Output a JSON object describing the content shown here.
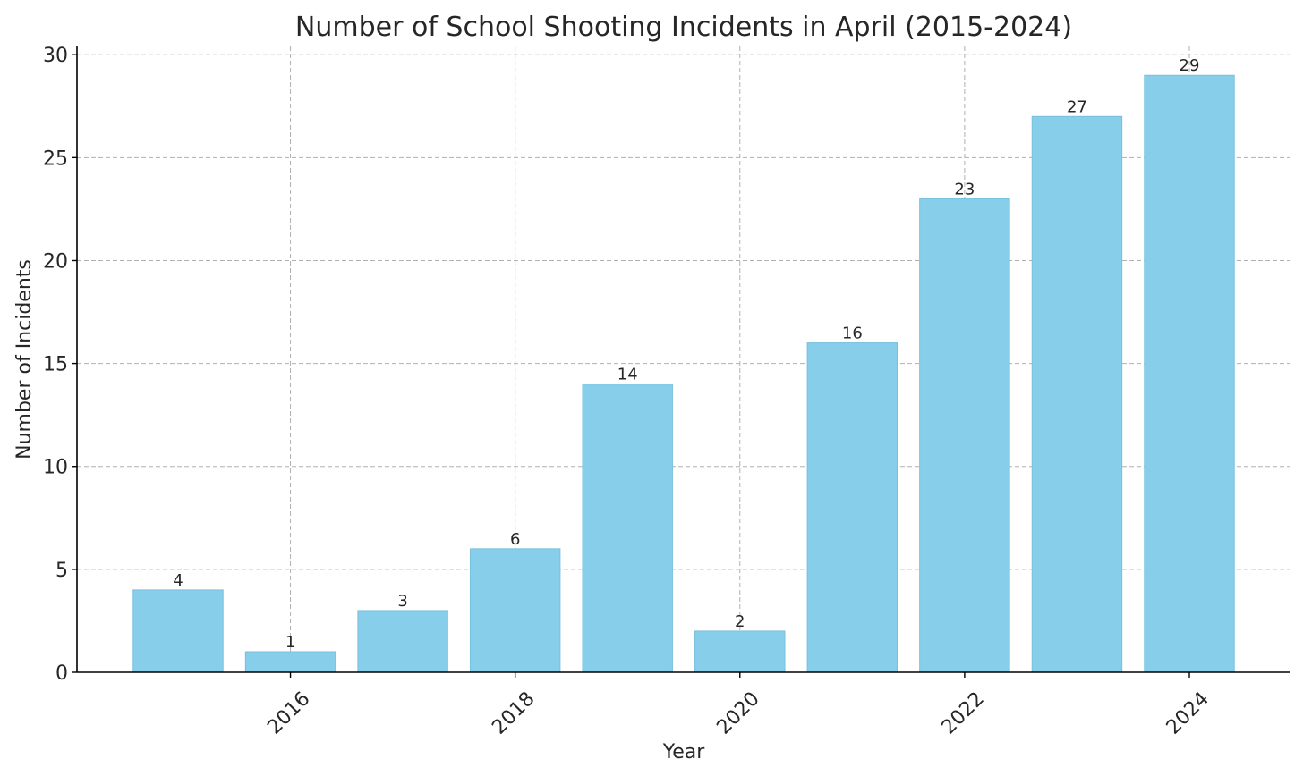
{
  "chart_data": {
    "type": "bar",
    "title": "Number of School Shooting Incidents in April (2015-2024)",
    "xlabel": "Year",
    "ylabel": "Number of Incidents",
    "x": [
      2015,
      2016,
      2017,
      2018,
      2019,
      2020,
      2021,
      2022,
      2023,
      2024
    ],
    "values": [
      4,
      1,
      3,
      6,
      14,
      2,
      16,
      23,
      27,
      29
    ],
    "data_labels": [
      "4",
      "1",
      "3",
      "6",
      "14",
      "2",
      "16",
      "23",
      "27",
      "29"
    ],
    "x_ticks": [
      2016,
      2018,
      2020,
      2022,
      2024
    ],
    "x_tick_labels": [
      "2016",
      "2018",
      "2020",
      "2022",
      "2024"
    ],
    "y_ticks": [
      0,
      5,
      10,
      15,
      20,
      25,
      30
    ],
    "y_tick_labels": [
      "0",
      "5",
      "10",
      "15",
      "20",
      "25",
      "30"
    ],
    "xlim": [
      2014.1,
      2024.9
    ],
    "ylim": [
      0,
      30.4
    ],
    "grid": true,
    "bar_color": "#87CEEB",
    "bar_edge_color": "#7AC0DD"
  }
}
